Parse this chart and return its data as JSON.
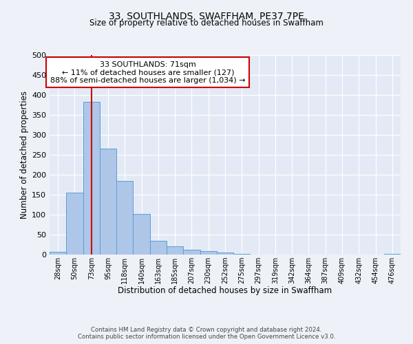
{
  "title": "33, SOUTHLANDS, SWAFFHAM, PE37 7PE",
  "subtitle": "Size of property relative to detached houses in Swaffham",
  "xlabel": "Distribution of detached houses by size in Swaffham",
  "ylabel": "Number of detached properties",
  "bin_labels": [
    "28sqm",
    "50sqm",
    "73sqm",
    "95sqm",
    "118sqm",
    "140sqm",
    "163sqm",
    "185sqm",
    "207sqm",
    "230sqm",
    "252sqm",
    "275sqm",
    "297sqm",
    "319sqm",
    "342sqm",
    "364sqm",
    "387sqm",
    "409sqm",
    "432sqm",
    "454sqm",
    "476sqm"
  ],
  "bar_heights": [
    7,
    155,
    382,
    265,
    184,
    101,
    35,
    21,
    12,
    8,
    5,
    2,
    0,
    0,
    0,
    0,
    0,
    0,
    0,
    0,
    2
  ],
  "bar_color": "#aec6e8",
  "bar_edge_color": "#5a9fd4",
  "ylim": [
    0,
    500
  ],
  "yticks": [
    0,
    50,
    100,
    150,
    200,
    250,
    300,
    350,
    400,
    450,
    500
  ],
  "property_line_x": 2,
  "property_line_color": "#cc0000",
  "annotation_title": "33 SOUTHLANDS: 71sqm",
  "annotation_line1": "← 11% of detached houses are smaller (127)",
  "annotation_line2": "88% of semi-detached houses are larger (1,034) →",
  "annotation_box_color": "#cc0000",
  "footer_line1": "Contains HM Land Registry data © Crown copyright and database right 2024.",
  "footer_line2": "Contains public sector information licensed under the Open Government Licence v3.0.",
  "background_color": "#eef2f8",
  "grid_color": "#ffffff",
  "plot_bg_color": "#e4eaf5"
}
